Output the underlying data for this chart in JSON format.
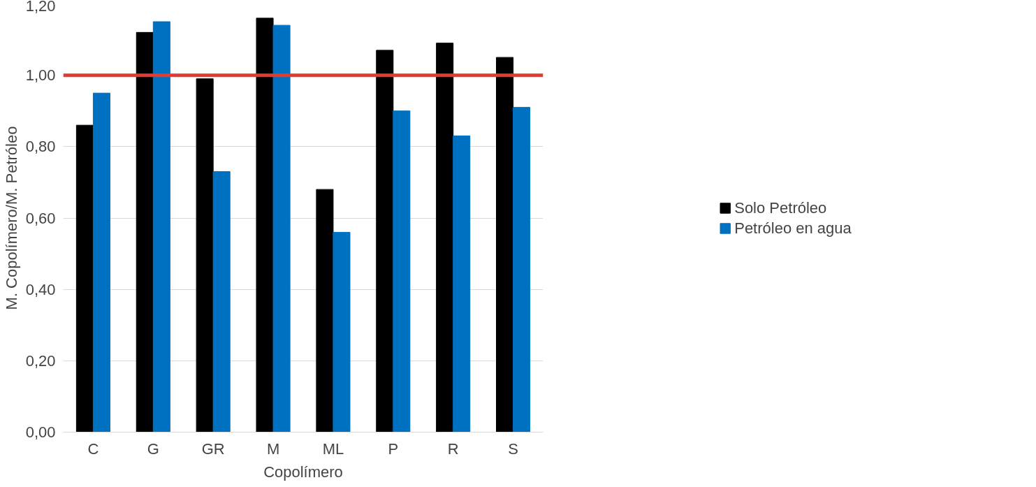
{
  "chart_data": {
    "type": "bar",
    "xlabel": "Copolímero",
    "ylabel": "M. Copolímero/M. Petróleo",
    "categories": [
      "C",
      "G",
      "GR",
      "M",
      "ML",
      "P",
      "R",
      "S"
    ],
    "series": [
      {
        "name": "Solo Petróleo",
        "color": "#000000",
        "values": [
          0.86,
          1.12,
          0.99,
          1.16,
          0.68,
          1.07,
          1.09,
          1.05
        ]
      },
      {
        "name": "Petróleo en agua",
        "color": "#0070c0",
        "values": [
          0.95,
          1.15,
          0.73,
          1.14,
          0.56,
          0.9,
          0.83,
          0.91
        ]
      }
    ],
    "ylim": [
      0,
      1.2
    ],
    "yticks": [
      {
        "value": 0,
        "label": "0,00"
      },
      {
        "value": 0.2,
        "label": "0,20"
      },
      {
        "value": 0.4,
        "label": "0,40"
      },
      {
        "value": 0.6,
        "label": "0,60"
      },
      {
        "value": 0.8,
        "label": "0,80"
      },
      {
        "value": 1.0,
        "label": "1,00"
      },
      {
        "value": 1.2,
        "label": "1,20"
      }
    ],
    "ref_lines": [
      {
        "axis": "y",
        "value": 1.0,
        "color": "#e03c31"
      }
    ],
    "grid": "y",
    "legend": "right"
  }
}
